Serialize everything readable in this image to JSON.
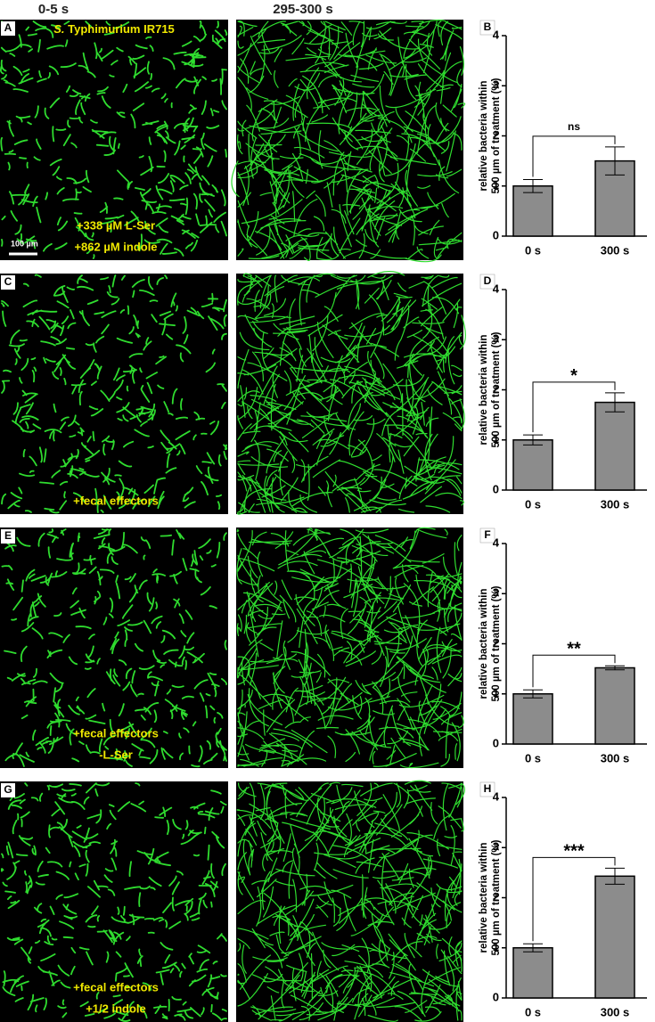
{
  "column_headers": [
    "0-5 s",
    "295-300 s"
  ],
  "rows": [
    {
      "label": "A",
      "species": "S.",
      "strain": "Typhimurium IR715",
      "scale_bar": "100 µm",
      "annotations": [
        "+338 µM L-Ser",
        "+862 µM indole"
      ]
    },
    {
      "label": "C",
      "annotations": [
        "+fecal effectors"
      ]
    },
    {
      "label": "E",
      "annotations": [
        "+fecal effectors",
        "-L-Ser"
      ]
    },
    {
      "label": "G",
      "annotations": [
        "+fecal effectors",
        "+1/2 indole"
      ]
    }
  ],
  "chart_data": [
    {
      "type": "bar",
      "panel": "B",
      "ylabel": [
        "relative bacteria within",
        "500 µm of treatment (%)"
      ],
      "categories": [
        "0 s",
        "300 s"
      ],
      "values": [
        1.0,
        1.5
      ],
      "errors": [
        0.13,
        0.28
      ],
      "significance": "ns",
      "color": "#8c8c8c",
      "ylim": [
        0,
        4
      ],
      "yticks": [
        0,
        1,
        2,
        3,
        4
      ]
    },
    {
      "type": "bar",
      "panel": "D",
      "ylabel": [
        "relative bacteria within",
        "500 µm of treatment (%)"
      ],
      "categories": [
        "0 s",
        "300 s"
      ],
      "values": [
        1.0,
        1.75
      ],
      "errors": [
        0.1,
        0.19
      ],
      "significance": "*",
      "color": "#8c8c8c",
      "ylim": [
        0,
        4
      ],
      "yticks": [
        0,
        1,
        2,
        3,
        4
      ]
    },
    {
      "type": "bar",
      "panel": "F",
      "ylabel": [
        "relative bacteria within",
        "500 µm of treatment (%)"
      ],
      "categories": [
        "0 s",
        "300 s"
      ],
      "values": [
        1.0,
        1.52
      ],
      "errors": [
        0.08,
        0.04
      ],
      "significance": "**",
      "color": "#8c8c8c",
      "ylim": [
        0,
        4
      ],
      "yticks": [
        0,
        1,
        2,
        3,
        4
      ]
    },
    {
      "type": "bar",
      "panel": "H",
      "ylabel": [
        "relative bacteria within",
        "500 µm of treatment (%)"
      ],
      "categories": [
        "0 s",
        "300 s"
      ],
      "values": [
        1.0,
        2.43
      ],
      "errors": [
        0.08,
        0.16
      ],
      "significance": "***",
      "color": "#8c8c8c",
      "ylim": [
        0,
        4
      ],
      "yticks": [
        0,
        1,
        2,
        3,
        4
      ]
    }
  ]
}
